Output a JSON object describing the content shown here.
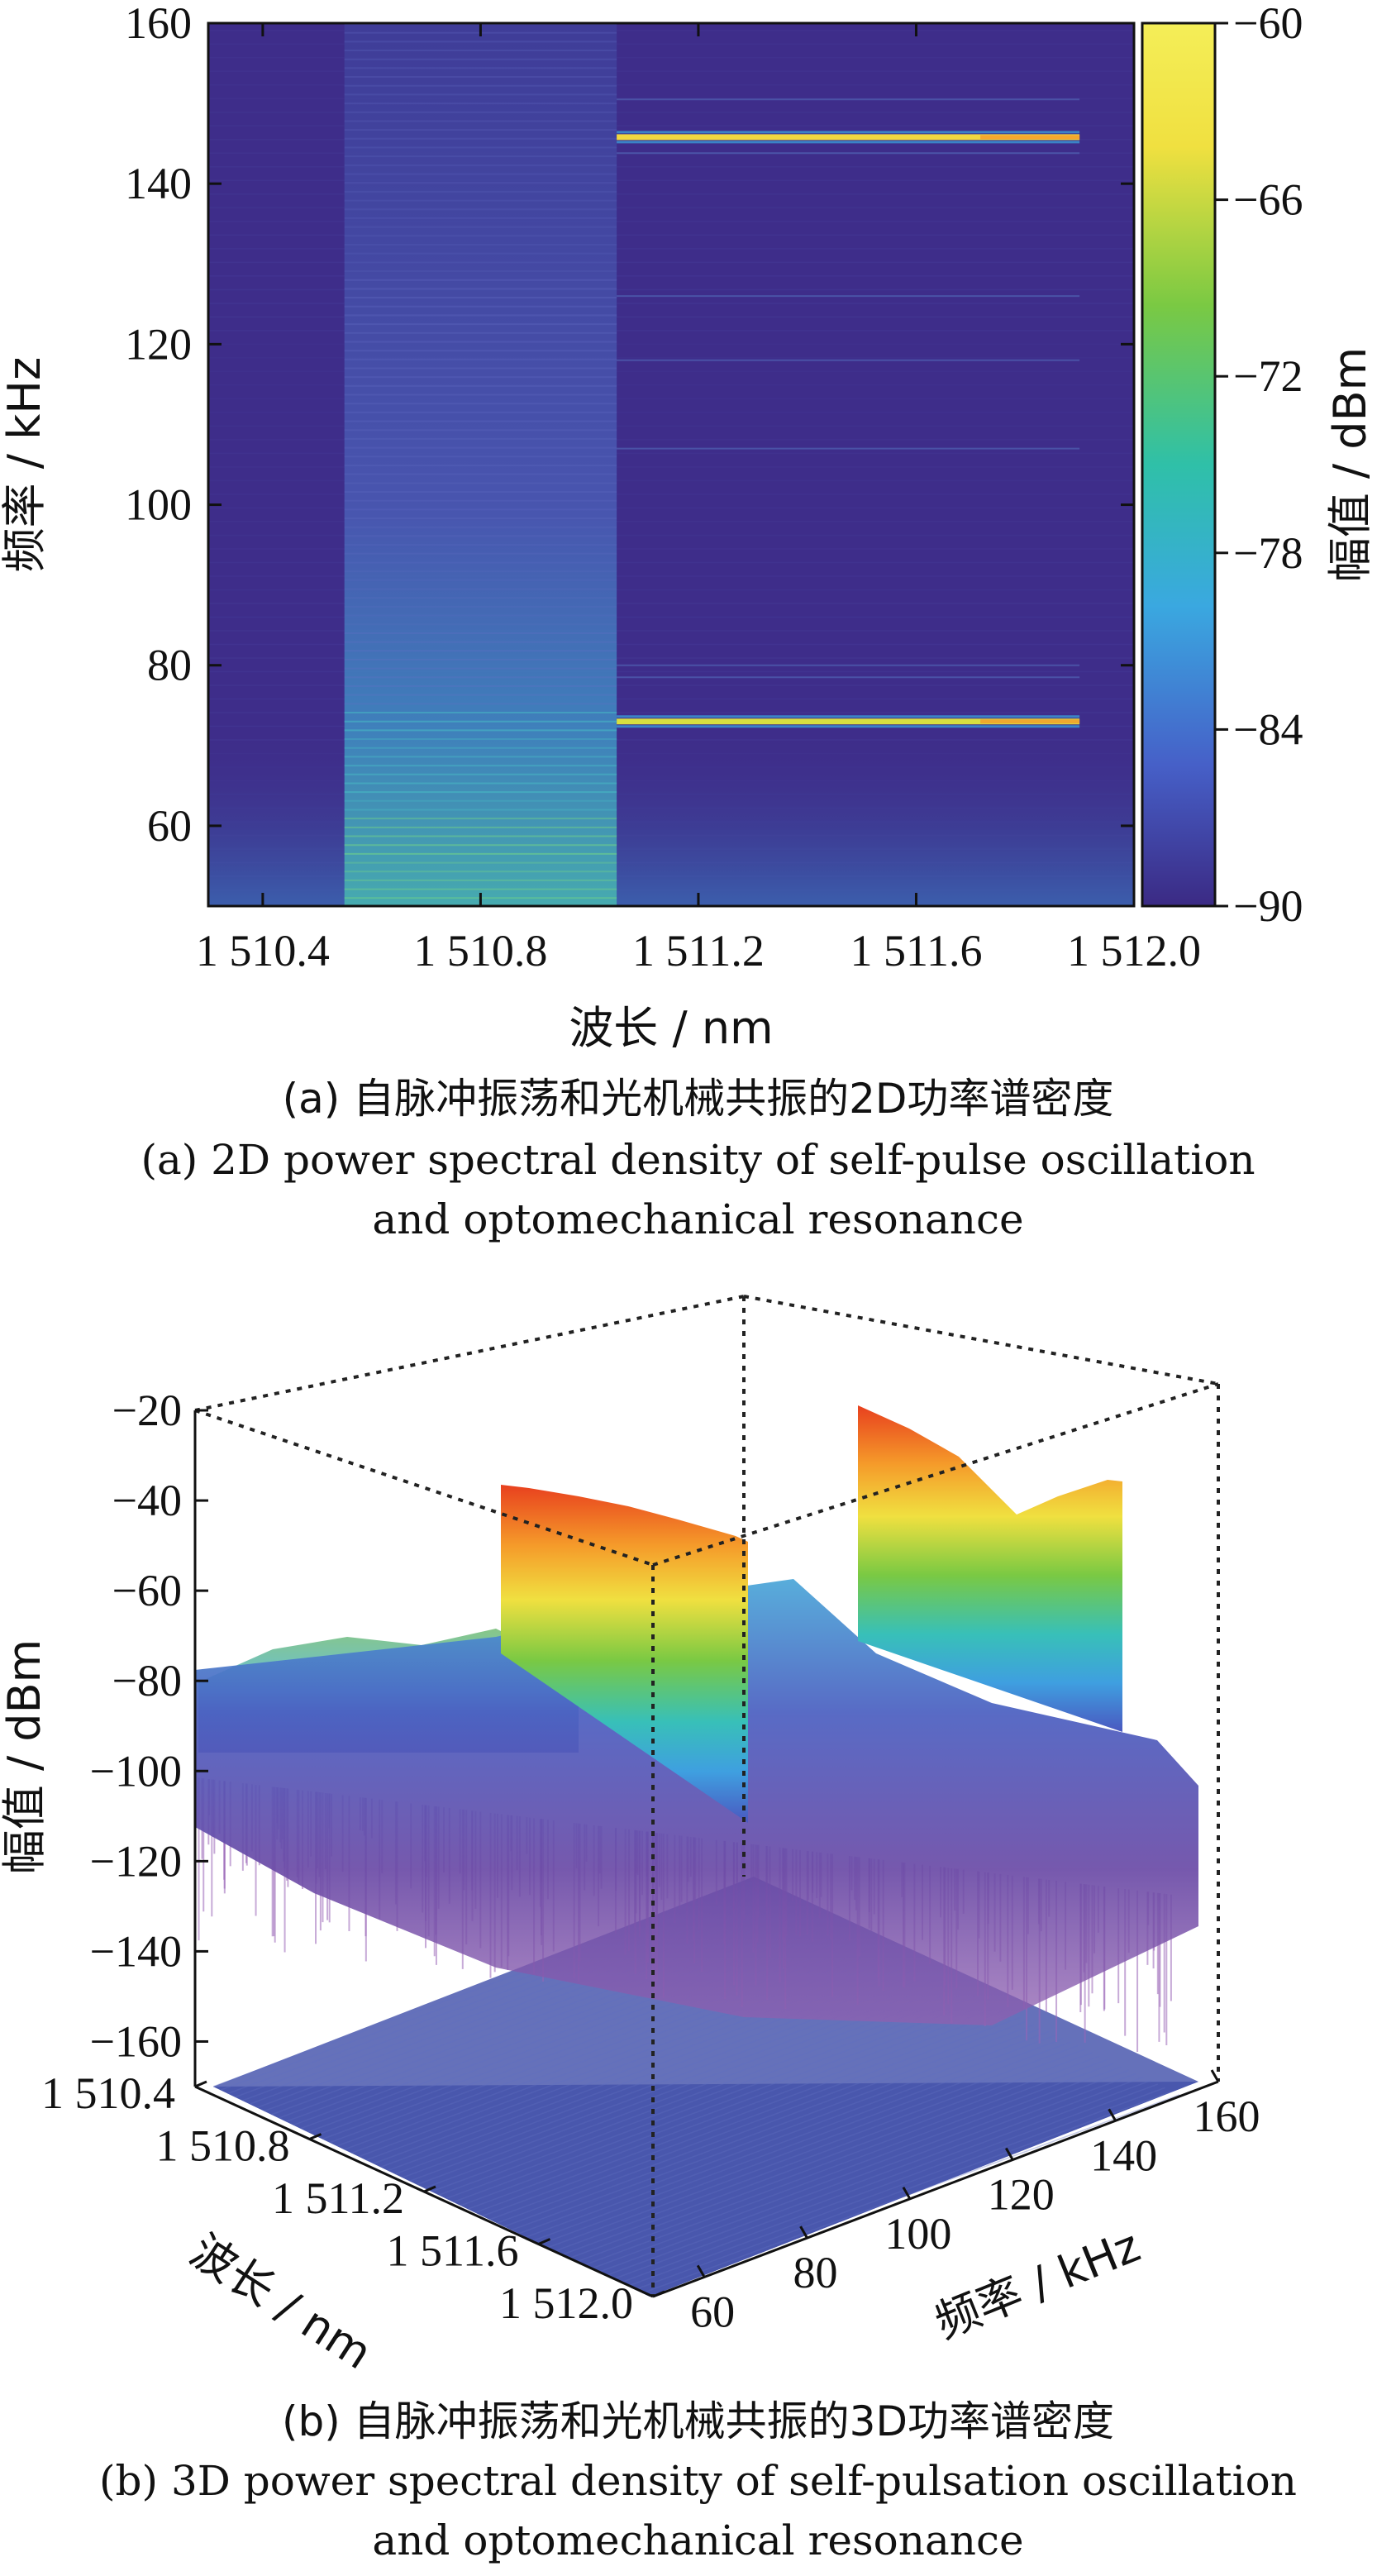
{
  "panel_a": {
    "caption_zh": "(a) 自脉冲振荡和光机械共振的2D功率谱密度",
    "caption_en_line1": "(a) 2D power spectral density of self-pulse oscillation",
    "caption_en_line2": "and optomechanical resonance"
  },
  "panel_b": {
    "caption_zh": "(b) 自脉冲振荡和光机械共振的3D功率谱密度",
    "caption_en_line1": "(b) 3D power spectral density of self-pulsation oscillation",
    "caption_en_line2": "and optomechanical resonance"
  },
  "colors": {
    "background": "#3e2d8a",
    "colormap": [
      "#3f2a86",
      "#4660c8",
      "#3aa8e0",
      "#2fc0a8",
      "#7ac943",
      "#f0e040",
      "#f59b2a",
      "#e8401e"
    ]
  },
  "chart_data": [
    {
      "type": "heatmap",
      "xlabel": "波长 / nm",
      "ylabel": "频率 / kHz",
      "colorbar_label": "幅值 / dBm",
      "xlim": [
        1510.3,
        1512.0
      ],
      "ylim": [
        50,
        160
      ],
      "x_ticks": [
        {
          "value": 1510.4,
          "label": "1 510.4"
        },
        {
          "value": 1510.8,
          "label": "1 510.8"
        },
        {
          "value": 1511.2,
          "label": "1 511.2"
        },
        {
          "value": 1511.6,
          "label": "1 511.6"
        },
        {
          "value": 1512.0,
          "label": "1 512.0"
        }
      ],
      "y_ticks": [
        {
          "value": 60,
          "label": "60"
        },
        {
          "value": 80,
          "label": "80"
        },
        {
          "value": 100,
          "label": "100"
        },
        {
          "value": 120,
          "label": "120"
        },
        {
          "value": 140,
          "label": "140"
        },
        {
          "value": 160,
          "label": "160"
        }
      ],
      "colorbar_range": [
        -90,
        -60
      ],
      "colorbar_ticks": [
        {
          "value": -60,
          "label": "−60"
        },
        {
          "value": -66,
          "label": "−66"
        },
        {
          "value": -72,
          "label": "−72"
        },
        {
          "value": -78,
          "label": "−78"
        },
        {
          "value": -84,
          "label": "−84"
        },
        {
          "value": -90,
          "label": "−90"
        }
      ],
      "regions": [
        {
          "name": "self-pulse oscillation",
          "x_range": [
            1510.55,
            1511.05
          ],
          "y_range": [
            50,
            160
          ],
          "level_dbm": -84
        }
      ],
      "lines": [
        {
          "name": "optomechanical resonance",
          "frequency_khz": 145.8,
          "x_range": [
            1511.05,
            1511.9
          ],
          "level_dbm": -64
        },
        {
          "name": "optomechanical resonance",
          "frequency_khz": 73.0,
          "x_range": [
            1511.05,
            1511.9
          ],
          "level_dbm": -66
        }
      ]
    },
    {
      "type": "surface",
      "zlabel": "幅值 / dBm",
      "xlabel": "波长 / nm",
      "ylabel": "频率 / kHz",
      "zlim": [
        -170,
        -20
      ],
      "z_ticks": [
        {
          "value": -20,
          "label": "−20"
        },
        {
          "value": -40,
          "label": "−40"
        },
        {
          "value": -60,
          "label": "−60"
        },
        {
          "value": -80,
          "label": "−80"
        },
        {
          "value": -100,
          "label": "−100"
        },
        {
          "value": -120,
          "label": "−120"
        },
        {
          "value": -140,
          "label": "−140"
        },
        {
          "value": -160,
          "label": "−160"
        }
      ],
      "x_ticks": [
        {
          "value": 1510.4,
          "label": "1 510.4"
        },
        {
          "value": 1510.8,
          "label": "1 510.8"
        },
        {
          "value": 1511.2,
          "label": "1 511.2"
        },
        {
          "value": 1511.6,
          "label": "1 511.6"
        },
        {
          "value": 1512.0,
          "label": "1 512.0"
        }
      ],
      "y_ticks": [
        {
          "value": 60,
          "label": "60"
        },
        {
          "value": 80,
          "label": "80"
        },
        {
          "value": 100,
          "label": "100"
        },
        {
          "value": 120,
          "label": "120"
        },
        {
          "value": 140,
          "label": "140"
        },
        {
          "value": 160,
          "label": "160"
        }
      ],
      "peaks": [
        {
          "name": "optomechanical resonance",
          "frequency_khz": 73,
          "peak_dbm": -40
        },
        {
          "name": "optomechanical resonance",
          "frequency_khz": 146,
          "peak_dbm": -25
        }
      ],
      "floor_dbm": -100
    }
  ]
}
